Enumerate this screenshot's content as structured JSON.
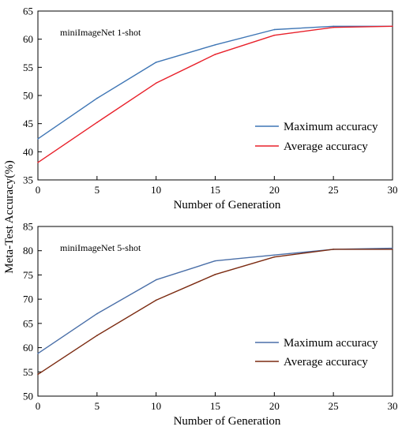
{
  "shared": {
    "ylabel": "Meta-Test Accuracy(%)"
  },
  "chart_data": [
    {
      "type": "line",
      "annotation": "miniImageNet 1-shot",
      "xlabel": "Number of Generation",
      "ylabel": "",
      "xlim": [
        0,
        30
      ],
      "ylim": [
        35,
        65
      ],
      "xticks": [
        0,
        5,
        10,
        15,
        20,
        25,
        30
      ],
      "yticks": [
        35,
        40,
        45,
        50,
        55,
        60,
        65
      ],
      "legend_position": "right-middle",
      "grid": false,
      "x": [
        0,
        5,
        10,
        15,
        20,
        25,
        30
      ],
      "series": [
        {
          "name": "Maximum accuracy",
          "color": "#3f76b5",
          "values": [
            42.3,
            49.5,
            55.9,
            59.0,
            61.7,
            62.3,
            62.3
          ]
        },
        {
          "name": "Average accuracy",
          "color": "#e8202a",
          "values": [
            38.1,
            45.2,
            52.2,
            57.3,
            60.7,
            62.1,
            62.3
          ]
        }
      ]
    },
    {
      "type": "line",
      "annotation": "miniImageNet 5-shot",
      "xlabel": "Number of Generation",
      "ylabel": "",
      "xlim": [
        0,
        30
      ],
      "ylim": [
        50,
        85
      ],
      "xticks": [
        0,
        5,
        10,
        15,
        20,
        25,
        30
      ],
      "yticks": [
        50,
        55,
        60,
        65,
        70,
        75,
        80,
        85
      ],
      "legend_position": "right-middle",
      "grid": false,
      "x": [
        0,
        5,
        10,
        15,
        20,
        25,
        30
      ],
      "series": [
        {
          "name": "Maximum accuracy",
          "color": "#4a6fa8",
          "values": [
            58.8,
            67.0,
            74.0,
            77.9,
            79.1,
            80.3,
            80.5
          ]
        },
        {
          "name": "Average accuracy",
          "color": "#7b2a10",
          "values": [
            54.5,
            62.5,
            69.8,
            75.1,
            78.7,
            80.3,
            80.3
          ]
        }
      ]
    }
  ]
}
